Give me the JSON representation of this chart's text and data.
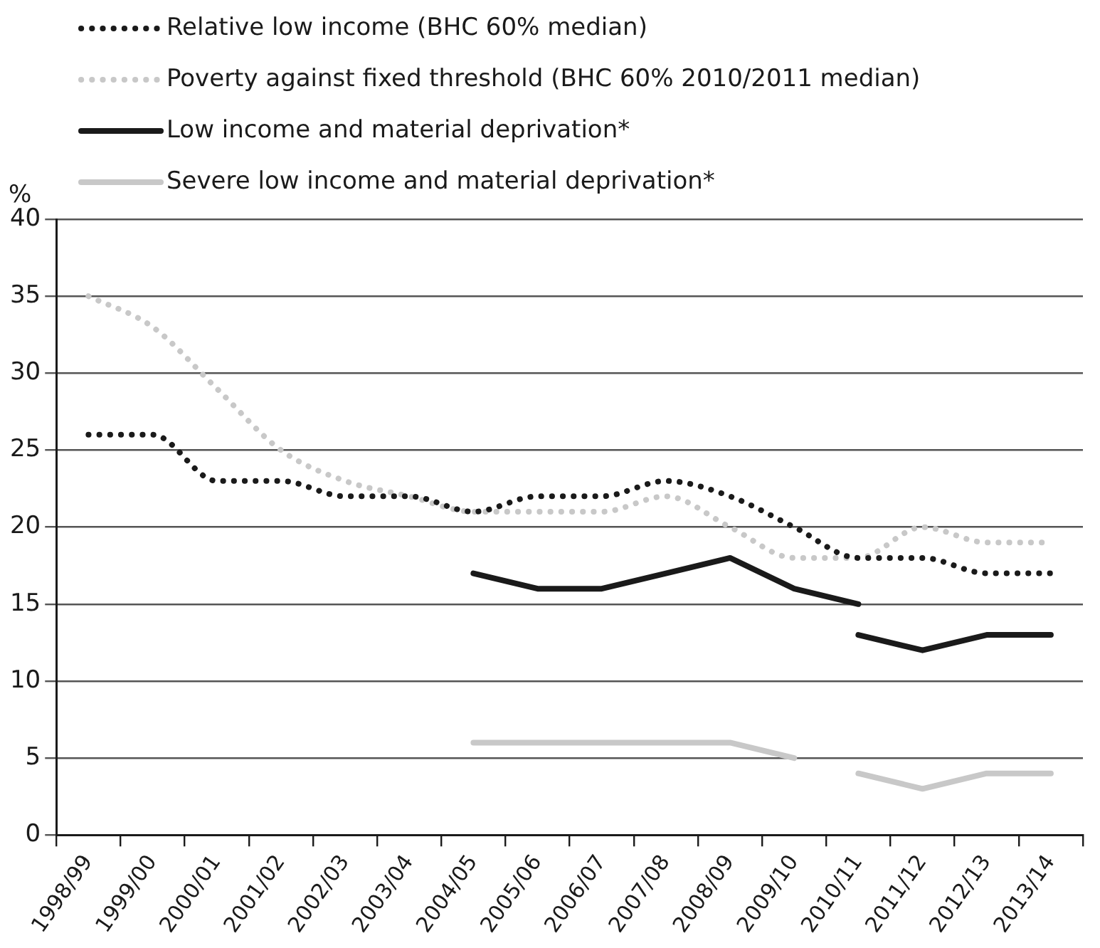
{
  "chart_data": {
    "type": "line",
    "ylabel": "%",
    "legend": "top left",
    "grid": "y",
    "marker": "none",
    "categories": [
      "1998/99",
      "1999/00",
      "2000/01",
      "2001/02",
      "2002/03",
      "2003/04",
      "2004/05",
      "2005/06",
      "2006/07",
      "2007/08",
      "2008/09",
      "2009/10",
      "2010/11",
      "2011/12",
      "2012/13",
      "2013/14"
    ],
    "ylim": [
      0,
      40
    ],
    "yticks": [
      0,
      5,
      10,
      15,
      20,
      25,
      30,
      35,
      40
    ],
    "series": [
      {
        "name": "Relative low income (BHC 60% median)",
        "color": "#1a1a1a",
        "line_style": "dotted",
        "values": [
          26,
          26,
          23,
          23,
          22,
          22,
          21,
          22,
          22,
          23,
          22,
          20,
          18,
          18,
          17,
          17
        ]
      },
      {
        "name": "Poverty against fixed threshold (BHC 60% 2010/2011 median)",
        "color": "#c8c8c8",
        "line_style": "dotted",
        "values": [
          35,
          33,
          29,
          25,
          23,
          22,
          21,
          21,
          21,
          22,
          20,
          18,
          18,
          20,
          19,
          19
        ]
      },
      {
        "name": "Low income and material deprivation*",
        "color": "#1a1a1a",
        "line_style": "solid",
        "values": [
          null,
          null,
          null,
          null,
          null,
          null,
          17,
          16,
          16,
          17,
          18,
          16,
          15,
          null,
          null,
          null
        ]
      },
      {
        "color": "#1a1a1a",
        "line_style": "solid",
        "values": [
          null,
          null,
          null,
          null,
          null,
          null,
          null,
          null,
          null,
          null,
          null,
          null,
          13,
          12,
          13,
          13
        ]
      },
      {
        "name": "Severe low income and material deprivation*",
        "color": "#c8c8c8",
        "line_style": "solid",
        "values": [
          null,
          null,
          null,
          null,
          null,
          null,
          6,
          6,
          6,
          6,
          6,
          5,
          null,
          null,
          null,
          null
        ]
      },
      {
        "color": "#c8c8c8",
        "line_style": "solid",
        "values": [
          null,
          null,
          null,
          null,
          null,
          null,
          null,
          null,
          null,
          null,
          null,
          null,
          4,
          3,
          4,
          4
        ]
      }
    ]
  }
}
